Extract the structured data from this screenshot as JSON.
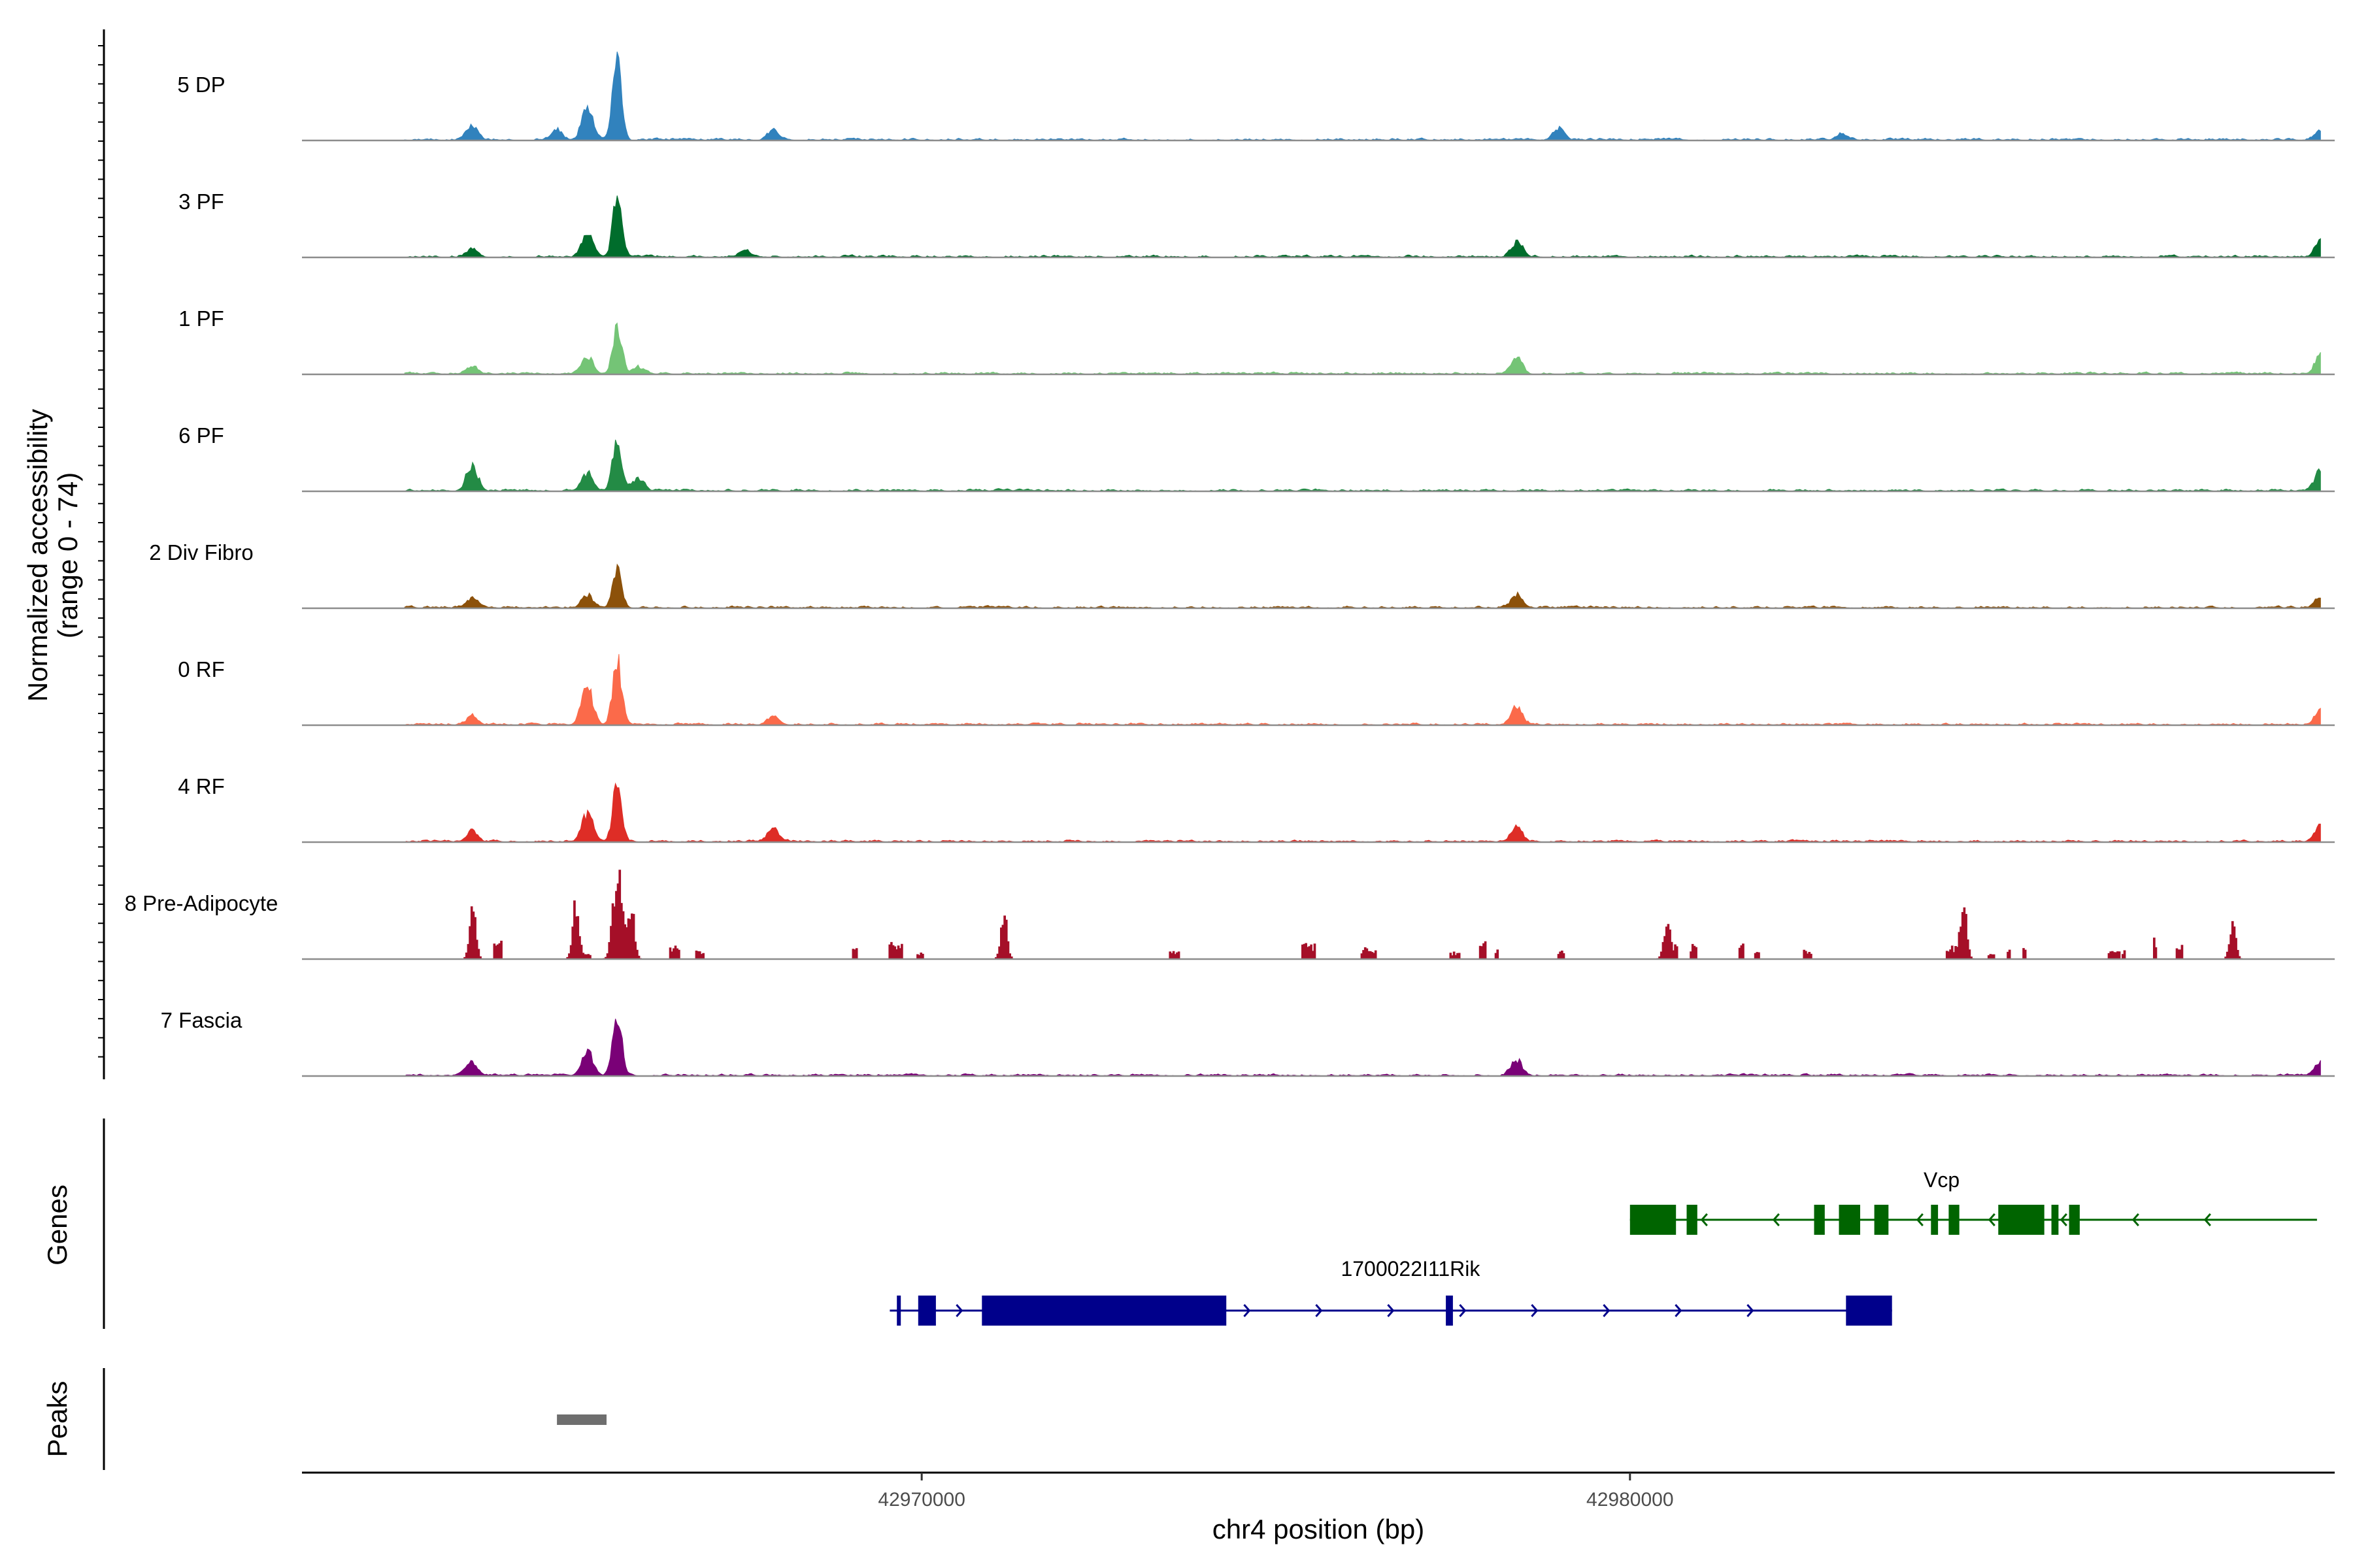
{
  "chart_data": {
    "type": "area",
    "title": "",
    "ylabel_line1": "Normalized accessibility",
    "ylabel_line2": "(range 0 - 74)",
    "xlabel": "chr4 position (bp)",
    "genes_label": "Genes",
    "peaks_label": "Peaks",
    "y_range": [
      0,
      74
    ],
    "x_range": [
      42961250,
      42989950
    ],
    "x_ticks": [
      {
        "value": 42970000,
        "label": "42970000"
      },
      {
        "value": 42980000,
        "label": "42980000"
      }
    ],
    "tracks": [
      {
        "name": "5 DP",
        "color": "#3182bd",
        "seed": 11,
        "sparse": false,
        "mainPeak": 60,
        "peaks": [
          {
            "x": 42963650,
            "h": 12
          },
          {
            "x": 42964850,
            "h": 8
          },
          {
            "x": 42965280,
            "h": 28
          },
          {
            "x": 42967900,
            "h": 7
          },
          {
            "x": 42979000,
            "h": 9
          },
          {
            "x": 42983000,
            "h": 5
          },
          {
            "x": 42989750,
            "h": 8
          }
        ]
      },
      {
        "name": "3 PF",
        "color": "#006d2c",
        "seed": 23,
        "sparse": false,
        "mainPeak": 44,
        "peaks": [
          {
            "x": 42963650,
            "h": 6
          },
          {
            "x": 42965280,
            "h": 18
          },
          {
            "x": 42967500,
            "h": 5
          },
          {
            "x": 42978400,
            "h": 12
          },
          {
            "x": 42989750,
            "h": 12
          }
        ]
      },
      {
        "name": "1 PF",
        "color": "#74c476",
        "seed": 37,
        "sparse": false,
        "mainPeak": 38,
        "peaks": [
          {
            "x": 42963650,
            "h": 6
          },
          {
            "x": 42965280,
            "h": 14
          },
          {
            "x": 42966000,
            "h": 5
          },
          {
            "x": 42978400,
            "h": 14
          },
          {
            "x": 42989750,
            "h": 14
          }
        ]
      },
      {
        "name": "6 PF",
        "color": "#238b45",
        "seed": 41,
        "sparse": false,
        "mainPeak": 38,
        "peaks": [
          {
            "x": 42963650,
            "h": 20
          },
          {
            "x": 42965280,
            "h": 14
          },
          {
            "x": 42966000,
            "h": 10
          },
          {
            "x": 42989750,
            "h": 15
          }
        ]
      },
      {
        "name": "2 Div Fibro",
        "color": "#8c510a",
        "seed": 53,
        "sparse": false,
        "mainPeak": 30,
        "peaks": [
          {
            "x": 42963650,
            "h": 8
          },
          {
            "x": 42965280,
            "h": 10
          },
          {
            "x": 42978400,
            "h": 10
          },
          {
            "x": 42989750,
            "h": 8
          }
        ]
      },
      {
        "name": "0 RF",
        "color": "#fb6a4a",
        "seed": 67,
        "sparse": false,
        "mainPeak": 50,
        "peaks": [
          {
            "x": 42963650,
            "h": 6
          },
          {
            "x": 42965280,
            "h": 30
          },
          {
            "x": 42967900,
            "h": 6
          },
          {
            "x": 42978400,
            "h": 14
          },
          {
            "x": 42989750,
            "h": 11
          }
        ]
      },
      {
        "name": "4 RF",
        "color": "#de2d26",
        "seed": 71,
        "sparse": false,
        "mainPeak": 42,
        "peaks": [
          {
            "x": 42963650,
            "h": 8
          },
          {
            "x": 42965280,
            "h": 22
          },
          {
            "x": 42967900,
            "h": 11
          },
          {
            "x": 42978400,
            "h": 12
          },
          {
            "x": 42989750,
            "h": 12
          }
        ]
      },
      {
        "name": "8 Pre-Adipocyte",
        "color": "#a50f28",
        "seed": 83,
        "sparse": true,
        "mainPeak": 70,
        "peaks": [
          {
            "x": 42963650,
            "h": 43
          },
          {
            "x": 42965100,
            "h": 40
          },
          {
            "x": 42965900,
            "h": 25
          },
          {
            "x": 42971150,
            "h": 36
          },
          {
            "x": 42980500,
            "h": 25
          },
          {
            "x": 42984700,
            "h": 40
          },
          {
            "x": 42988500,
            "h": 25
          }
        ]
      },
      {
        "name": "7 Fascia",
        "color": "#7a0177",
        "seed": 97,
        "sparse": false,
        "mainPeak": 46,
        "peaks": [
          {
            "x": 42963650,
            "h": 10
          },
          {
            "x": 42965280,
            "h": 20
          },
          {
            "x": 42978400,
            "h": 12
          },
          {
            "x": 42989750,
            "h": 10
          }
        ]
      }
    ],
    "main_peak_pos": 42965700,
    "genes": [
      {
        "name": "Vcp",
        "strand": "-",
        "color": "#006400",
        "start": 42980000,
        "end": 42989700,
        "exons": [
          [
            42980000,
            42980650
          ],
          [
            42980800,
            42980950
          ],
          [
            42982600,
            42982750
          ],
          [
            42982950,
            42983250
          ],
          [
            42983450,
            42983650
          ],
          [
            42984250,
            42984350
          ],
          [
            42984500,
            42984650
          ],
          [
            42985200,
            42985850
          ],
          [
            42985950,
            42986050
          ],
          [
            42986200,
            42986350
          ]
        ]
      },
      {
        "name": "1700022I11Rik",
        "strand": "+",
        "color": "#00008b",
        "start": 42969550,
        "end": 42983700,
        "exons": [
          [
            42969650,
            42969700
          ],
          [
            42969950,
            42970200
          ],
          [
            42970850,
            42974300
          ],
          [
            42977400,
            42977500
          ],
          [
            42983050,
            42983700
          ]
        ]
      }
    ],
    "peaks_regions": [
      [
        42964850,
        42965550
      ]
    ]
  }
}
